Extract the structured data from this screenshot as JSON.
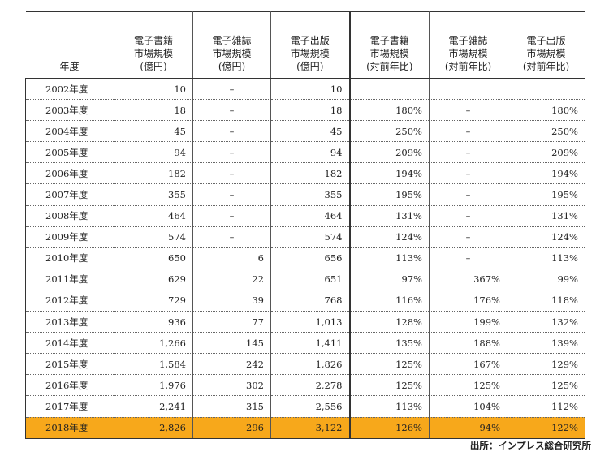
{
  "table": {
    "headers": [
      [
        "年度"
      ],
      [
        "電子書籍",
        "市場規模",
        "(億円)"
      ],
      [
        "電子雑誌",
        "市場規模",
        "(億円)"
      ],
      [
        "電子出版",
        "市場規模",
        "(億円)"
      ],
      [
        "電子書籍",
        "市場規模",
        "(対前年比)"
      ],
      [
        "電子雑誌",
        "市場規模",
        "(対前年比)"
      ],
      [
        "電子出版",
        "市場規模",
        "(対前年比)"
      ]
    ],
    "rows": [
      [
        "2002年度",
        "10",
        "–",
        "10",
        "",
        "",
        ""
      ],
      [
        "2003年度",
        "18",
        "–",
        "18",
        "180%",
        "–",
        "180%"
      ],
      [
        "2004年度",
        "45",
        "–",
        "45",
        "250%",
        "–",
        "250%"
      ],
      [
        "2005年度",
        "94",
        "–",
        "94",
        "209%",
        "–",
        "209%"
      ],
      [
        "2006年度",
        "182",
        "–",
        "182",
        "194%",
        "–",
        "194%"
      ],
      [
        "2007年度",
        "355",
        "–",
        "355",
        "195%",
        "–",
        "195%"
      ],
      [
        "2008年度",
        "464",
        "–",
        "464",
        "131%",
        "–",
        "131%"
      ],
      [
        "2009年度",
        "574",
        "–",
        "574",
        "124%",
        "–",
        "124%"
      ],
      [
        "2010年度",
        "650",
        "6",
        "656",
        "113%",
        "–",
        "113%"
      ],
      [
        "2011年度",
        "629",
        "22",
        "651",
        "97%",
        "367%",
        "99%"
      ],
      [
        "2012年度",
        "729",
        "39",
        "768",
        "116%",
        "176%",
        "118%"
      ],
      [
        "2013年度",
        "936",
        "77",
        "1,013",
        "128%",
        "199%",
        "132%"
      ],
      [
        "2014年度",
        "1,266",
        "145",
        "1,411",
        "135%",
        "188%",
        "139%"
      ],
      [
        "2015年度",
        "1,584",
        "242",
        "1,826",
        "125%",
        "167%",
        "129%"
      ],
      [
        "2016年度",
        "1,976",
        "302",
        "2,278",
        "125%",
        "125%",
        "125%"
      ],
      [
        "2017年度",
        "2,241",
        "315",
        "2,556",
        "113%",
        "104%",
        "112%"
      ],
      [
        "2018年度",
        "2,826",
        "296",
        "3,122",
        "126%",
        "94%",
        "122%"
      ]
    ],
    "highlight_row": 16,
    "highlight_color": "#f7a81b"
  },
  "source": "出所：インプレス総合研究所"
}
